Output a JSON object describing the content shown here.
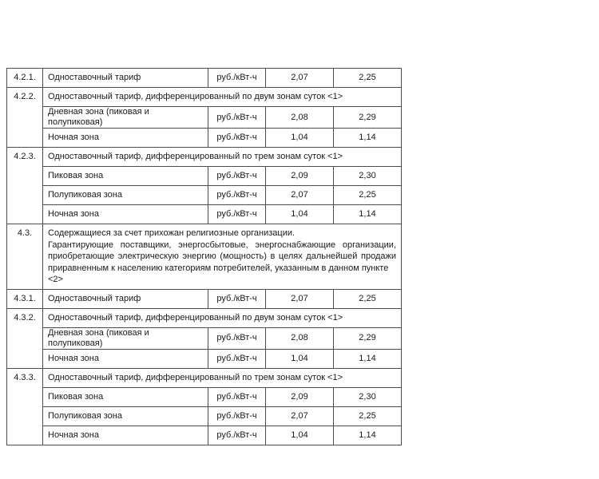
{
  "page": {
    "background_color": "#ffffff",
    "text_color": "#1a1a1a",
    "table_border_color": "#4d4d4d"
  },
  "table": {
    "rows": [
      {
        "type": "simple",
        "num": "4.2.1.",
        "desc": "Одноставочный тариф",
        "unit": "руб./кВт-ч",
        "v1": "2,07",
        "v2": "2,25"
      },
      {
        "type": "group",
        "num": "4.2.2.",
        "title": "Одноставочный тариф, дифференцированный по двум зонам суток <1>"
      },
      {
        "type": "sub",
        "desc": "Дневная зона (пиковая и полупиковая)",
        "unit": "руб./кВт-ч",
        "v1": "2,08",
        "v2": "2,29"
      },
      {
        "type": "sub",
        "desc": "Ночная зона",
        "unit": "руб./кВт-ч",
        "v1": "1,04",
        "v2": "1,14"
      },
      {
        "type": "group",
        "num": "4.2.3.",
        "title": "Одноставочный тариф, дифференцированный по трем зонам суток <1>"
      },
      {
        "type": "sub",
        "desc": "Пиковая зона",
        "unit": "руб./кВт-ч",
        "v1": "2,09",
        "v2": "2,30"
      },
      {
        "type": "sub",
        "desc": "Полупиковая зона",
        "unit": "руб./кВт-ч",
        "v1": "2,07",
        "v2": "2,25"
      },
      {
        "type": "sub",
        "desc": "Ночная зона",
        "unit": "руб./кВт-ч",
        "v1": "1,04",
        "v2": "1,14"
      },
      {
        "type": "textblock",
        "num": "4.3.",
        "lines": [
          "Содержащиеся за счет прихожан религиозные организации.",
          "Гарантирующие поставщики, энергосбытовые, энергоснабжающие организации,",
          "приобретающие электрическую энергию (мощность) в целях дальнейшей продажи",
          "приравненным к населению категориям потребителей, указанным в данном пункте <2>"
        ]
      },
      {
        "type": "simple",
        "num": "4.3.1.",
        "desc": "Одноставочный тариф",
        "unit": "руб./кВт-ч",
        "v1": "2,07",
        "v2": "2,25"
      },
      {
        "type": "group",
        "num": "4.3.2.",
        "title": "Одноставочный тариф, дифференцированный по двум зонам суток <1>"
      },
      {
        "type": "sub",
        "desc": "Дневная зона (пиковая и полупиковая)",
        "unit": "руб./кВт-ч",
        "v1": "2,08",
        "v2": "2,29"
      },
      {
        "type": "sub",
        "desc": "Ночная зона",
        "unit": "руб./кВт-ч",
        "v1": "1,04",
        "v2": "1,14"
      },
      {
        "type": "group",
        "num": "4.3.3.",
        "title": "Одноставочный тариф, дифференцированный по трем зонам суток <1>"
      },
      {
        "type": "sub",
        "desc": "Пиковая зона",
        "unit": "руб./кВт-ч",
        "v1": "2,09",
        "v2": "2,30"
      },
      {
        "type": "sub",
        "desc": "Полупиковая зона",
        "unit": "руб./кВт-ч",
        "v1": "2,07",
        "v2": "2,25"
      },
      {
        "type": "sub",
        "desc": "Ночная зона",
        "unit": "руб./кВт-ч",
        "v1": "1,04",
        "v2": "1,14"
      }
    ]
  }
}
